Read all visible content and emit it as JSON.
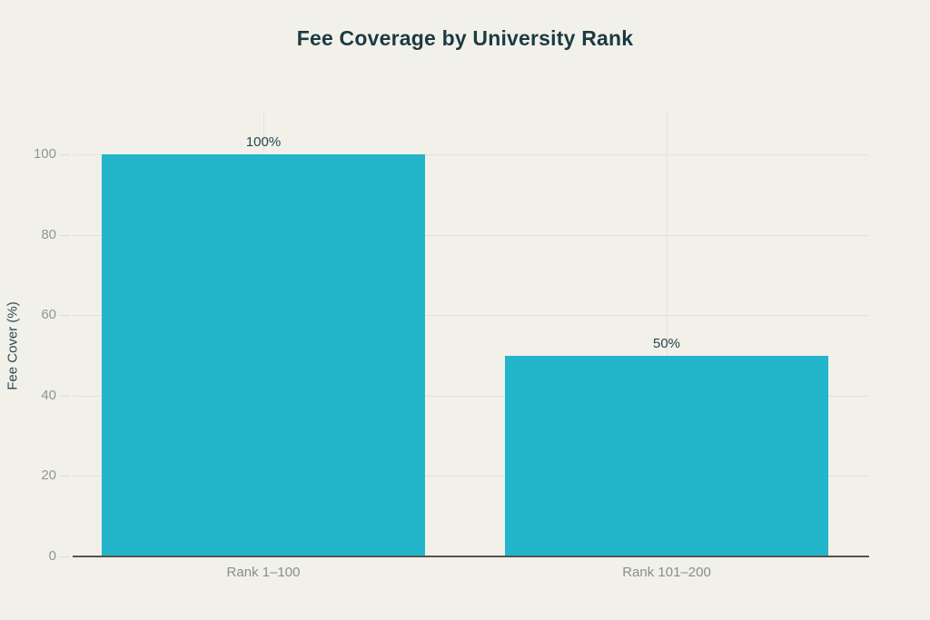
{
  "page": {
    "background": "#f1f1ea"
  },
  "chart_data": {
    "type": "bar",
    "title": "Fee Coverage by University Rank",
    "categories": [
      "Rank 1–100",
      "Rank 101–200"
    ],
    "values": [
      100,
      50
    ],
    "value_labels": [
      "100%",
      "50%"
    ],
    "xlabel": "",
    "ylabel": "Fee Cover (%)",
    "ylim": [
      0,
      110
    ],
    "yticks": [
      0,
      20,
      40,
      60,
      80,
      100
    ],
    "grid": true,
    "legend": false,
    "colors": {
      "bar": "#23b5c9",
      "title": "#1c3a43",
      "value_label": "#27454d",
      "y_tick_label": "#93958e",
      "x_tick_label": "#8b8d87",
      "gridline": "#e3e2d9",
      "axis_line": "#56524c",
      "background": "#f1f1ea"
    }
  }
}
